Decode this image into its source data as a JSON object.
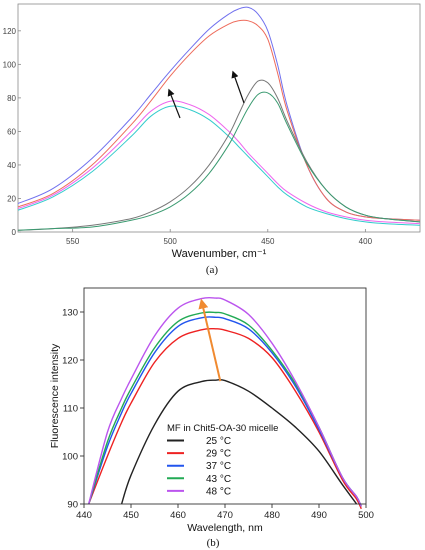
{
  "chart_data": [
    {
      "type": "line",
      "panel_label": "(a)",
      "xlabel": "Wavenumber, cm⁻¹",
      "ylabel": "",
      "x_reversed": true,
      "xlim": [
        578,
        372
      ],
      "ylim": [
        0,
        136
      ],
      "xticks": [
        550,
        500,
        450,
        400
      ],
      "yticks": [
        0,
        20,
        40,
        60,
        80,
        100,
        120
      ],
      "grid": false,
      "legend": "none",
      "x": [
        578,
        560,
        540,
        520,
        510,
        500,
        490,
        480,
        470,
        465,
        460,
        455,
        450,
        445,
        440,
        430,
        420,
        410,
        400,
        390,
        372
      ],
      "series": [
        {
          "color": "#7070ee",
          "values": [
            17,
            26,
            44,
            68,
            82,
            96,
            109,
            121,
            130,
            133,
            134,
            130,
            120,
            100,
            75,
            40,
            20,
            12,
            9,
            8,
            7
          ]
        },
        {
          "color": "#ee6b5b",
          "values": [
            15,
            23,
            40,
            64,
            78,
            93,
            106,
            117,
            124,
            126,
            126,
            123,
            115,
            95,
            72,
            40,
            20,
            12,
            9,
            8,
            7
          ]
        },
        {
          "color": "#ee66ee",
          "values": [
            14,
            22,
            38,
            60,
            72,
            78,
            76,
            70,
            60,
            54,
            47,
            41,
            35,
            29,
            24,
            17,
            12,
            9,
            7,
            6,
            5
          ]
        },
        {
          "color": "#33cccc",
          "values": [
            13,
            21,
            36,
            57,
            69,
            75,
            73,
            67,
            57,
            51,
            45,
            39,
            33,
            27,
            22,
            15,
            11,
            8,
            6,
            5,
            4
          ]
        },
        {
          "color": "#777777",
          "values": [
            1,
            2,
            4,
            8,
            12,
            18,
            27,
            40,
            58,
            70,
            82,
            90,
            89,
            80,
            66,
            42,
            25,
            15,
            10,
            8,
            6
          ]
        },
        {
          "color": "#3a9a70",
          "values": [
            1,
            2,
            3,
            7,
            10,
            15,
            23,
            35,
            52,
            63,
            74,
            82,
            83,
            77,
            64,
            41,
            25,
            15,
            10,
            8,
            6
          ]
        }
      ]
    },
    {
      "type": "line",
      "panel_label": "(b)",
      "xlabel": "Wavelength, nm",
      "ylabel": "Fluorescence intensity",
      "xlim": [
        440,
        500
      ],
      "ylim": [
        90,
        135
      ],
      "xticks": [
        440,
        450,
        460,
        470,
        480,
        490,
        500
      ],
      "yticks": [
        90,
        100,
        110,
        120,
        130
      ],
      "grid": false,
      "legend": "bottom-left",
      "legend_title": "MF in Chit5-OA-30 micelle",
      "x": [
        441,
        445,
        448,
        450,
        455,
        460,
        465,
        468,
        470,
        475,
        480,
        485,
        490,
        495,
        498,
        499
      ],
      "series": [
        {
          "name": "25 °C",
          "color": "#222222",
          "values": [
            null,
            null,
            90,
            96,
            106.5,
            113.5,
            115.5,
            115.8,
            115.7,
            113.5,
            110,
            106,
            101,
            94,
            90,
            null
          ]
        },
        {
          "name": "29 °C",
          "color": "#ee2222",
          "values": [
            90,
            100,
            107,
            111,
            119.5,
            124.5,
            126.3,
            126.5,
            126.2,
            124.5,
            120.5,
            113.5,
            105,
            95,
            91,
            89
          ]
        },
        {
          "name": "37 °C",
          "color": "#2255ee",
          "values": [
            90,
            102,
            109,
            113,
            121.5,
            127,
            128.8,
            128.9,
            128.6,
            126.5,
            121.5,
            114.5,
            105.5,
            95.5,
            91.5,
            89.5
          ]
        },
        {
          "name": "43 °C",
          "color": "#22aa55",
          "values": [
            90,
            103,
            110,
            114,
            122.5,
            128,
            129.8,
            129.9,
            129.6,
            127.3,
            122,
            115,
            106,
            95.5,
            91.5,
            89.5
          ]
        },
        {
          "name": "48 °C",
          "color": "#bb55ee",
          "values": [
            90,
            105,
            112,
            116,
            125,
            130.8,
            132.8,
            132.9,
            132.5,
            129.5,
            123.5,
            115.5,
            106,
            95.5,
            91.5,
            89.5
          ]
        }
      ],
      "arrow": {
        "from": [
          469,
          115.6
        ],
        "to": [
          465,
          132.8
        ],
        "color": "#f08a30"
      }
    }
  ]
}
